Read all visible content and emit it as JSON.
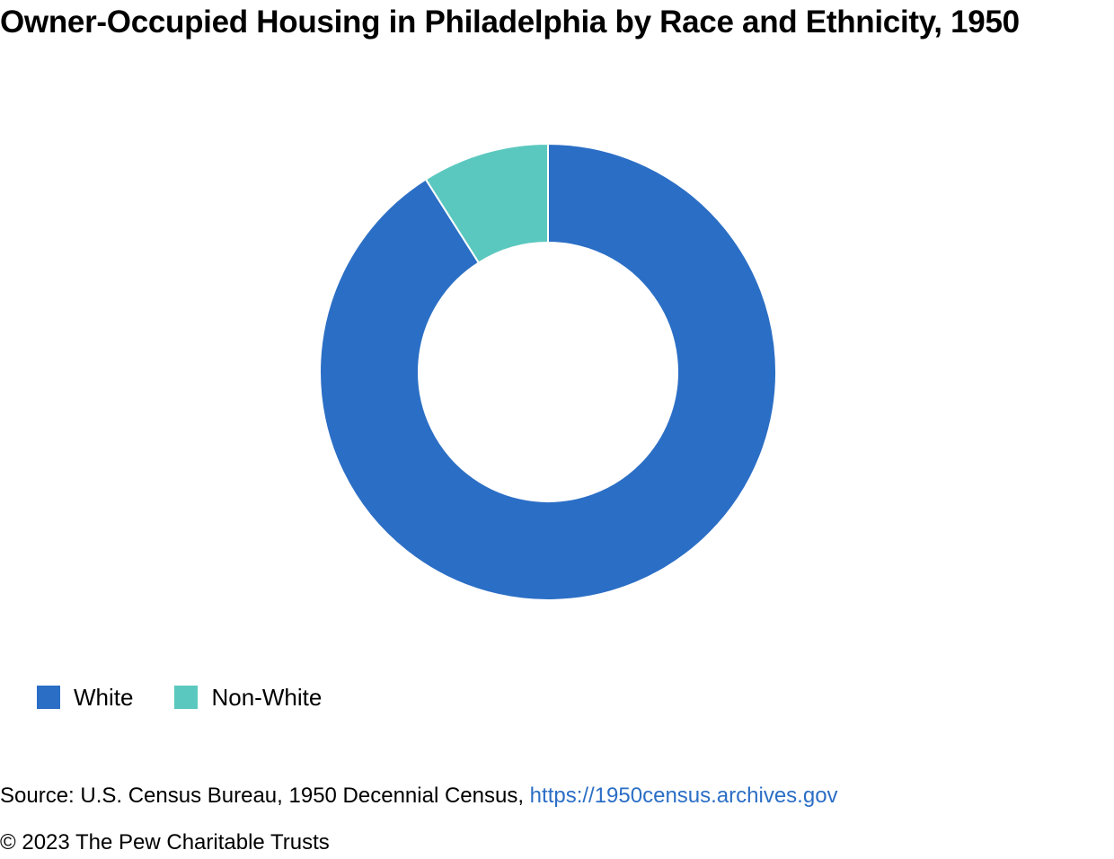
{
  "chart_data": {
    "type": "pie",
    "title": "Owner-Occupied Housing in Philadelphia by Race and Ethnicity, 1950",
    "categories": [
      "White",
      "Non-White"
    ],
    "values": [
      91,
      9
    ],
    "units": "percent",
    "colors": [
      "#2b6ec5",
      "#5bc8bf"
    ],
    "donut": true,
    "legend": "bottom-left"
  },
  "legend": {
    "items": [
      {
        "label": "White",
        "color": "#2b6ec5"
      },
      {
        "label": "Non-White",
        "color": "#5bc8bf"
      }
    ]
  },
  "footer": {
    "source_prefix": "Source: U.S. Census Bureau, 1950 Decennial Census, ",
    "source_link": "https://1950census.archives.gov",
    "copyright": "© 2023 The Pew Charitable Trusts"
  }
}
